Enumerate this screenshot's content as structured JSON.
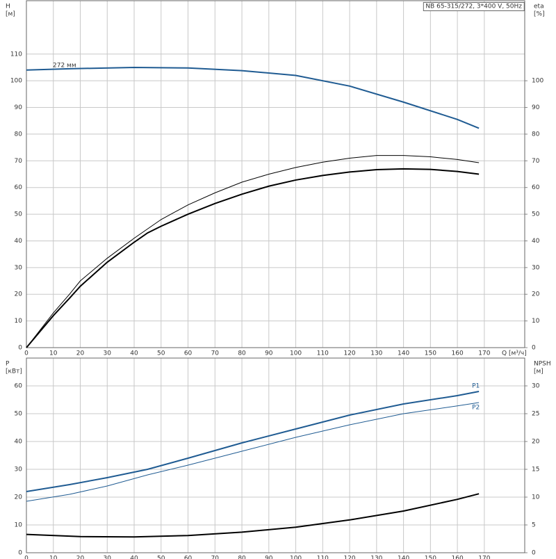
{
  "chart_data": [
    {
      "type": "line",
      "title": "NB 65-315/272, 3*400 V, 50Hz",
      "annotation": "272 мм",
      "y_label": "H",
      "y_unit": "[м]",
      "y2_label": "eta",
      "y2_unit": "[%]",
      "x_label": "Q [м³/ч]",
      "xlim": [
        0,
        185
      ],
      "xticks": [
        0,
        10,
        20,
        30,
        40,
        50,
        60,
        70,
        80,
        90,
        100,
        110,
        120,
        130,
        140,
        150,
        160,
        170
      ],
      "ylim": [
        0,
        130
      ],
      "yticks": [
        0,
        10,
        20,
        30,
        40,
        50,
        60,
        70,
        80,
        90,
        100,
        110
      ],
      "y2lim": [
        0,
        130
      ],
      "y2ticks": [
        0,
        10,
        20,
        30,
        40,
        50,
        60,
        70,
        80,
        90,
        100
      ],
      "grid": true,
      "series": [
        {
          "color": "#1f5b92",
          "line_width": 2,
          "axis": "y",
          "x": [
            0,
            16,
            40,
            60,
            80,
            100,
            120,
            140,
            160,
            168
          ],
          "values": [
            104,
            104.5,
            105,
            104.8,
            103.8,
            102,
            98,
            92,
            85.5,
            82.2
          ]
        },
        {
          "color": "#000000",
          "line_width": 1,
          "axis": "y2",
          "x": [
            0,
            10,
            16,
            20,
            30,
            40,
            50,
            60,
            70,
            80,
            90,
            100,
            110,
            120,
            130,
            140,
            150,
            160,
            168
          ],
          "values": [
            0,
            13,
            20,
            25,
            33.5,
            41,
            48,
            53.5,
            58,
            62,
            65,
            67.5,
            69.5,
            71,
            72,
            72,
            71.5,
            70.5,
            69.3
          ]
        },
        {
          "color": "#000000",
          "line_width": 2,
          "axis": "y2",
          "x": [
            0,
            10,
            16,
            20,
            30,
            40,
            45,
            50,
            60,
            70,
            80,
            90,
            100,
            110,
            120,
            130,
            140,
            150,
            160,
            168
          ],
          "values": [
            0,
            12,
            18.5,
            23,
            32,
            39.5,
            43,
            45.5,
            50,
            54,
            57.5,
            60.5,
            62.8,
            64.5,
            65.8,
            66.7,
            67,
            66.8,
            66,
            65
          ]
        }
      ]
    },
    {
      "type": "line",
      "y_label": "P",
      "y_unit": "[кВт]",
      "y2_label": "NPSH",
      "y2_unit": "[м]",
      "xlim": [
        0,
        185
      ],
      "xticks": [
        0,
        10,
        20,
        30,
        40,
        50,
        60,
        70,
        80,
        90,
        100,
        110,
        120,
        130,
        140,
        150,
        160,
        170
      ],
      "ylim": [
        0,
        70
      ],
      "yticks": [
        0,
        10,
        20,
        30,
        40,
        50,
        60
      ],
      "y2lim": [
        0,
        35
      ],
      "y2ticks": [
        0,
        5,
        10,
        15,
        20,
        25,
        30
      ],
      "grid": true,
      "series": [
        {
          "name": "P1",
          "color": "#1f5b92",
          "line_width": 2,
          "axis": "y",
          "x": [
            0,
            16,
            30,
            45,
            60,
            80,
            100,
            120,
            140,
            160,
            168
          ],
          "values": [
            22,
            24.5,
            27,
            30,
            34,
            39.5,
            44.5,
            49.5,
            53.5,
            56.5,
            58
          ]
        },
        {
          "name": "P2",
          "color": "#1f5b92",
          "line_width": 1,
          "axis": "y",
          "x": [
            0,
            16,
            30,
            45,
            60,
            80,
            100,
            120,
            140,
            160,
            168
          ],
          "values": [
            18.5,
            21,
            24,
            28,
            31.5,
            36.5,
            41.5,
            46,
            50,
            52.8,
            54
          ]
        },
        {
          "color": "#000000",
          "line_width": 2,
          "axis": "y2",
          "x": [
            0,
            20,
            40,
            60,
            80,
            100,
            120,
            140,
            160,
            168
          ],
          "values": [
            3.3,
            2.9,
            2.85,
            3.1,
            3.7,
            4.6,
            5.9,
            7.5,
            9.6,
            10.6
          ]
        }
      ]
    }
  ]
}
